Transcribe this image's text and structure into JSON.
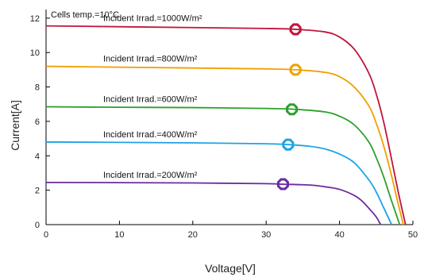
{
  "chart_data": {
    "type": "line",
    "annotation": "Cells temp.=10°C",
    "xlabel": "Voltage[V]",
    "ylabel": "Current[A]",
    "xlim": [
      0,
      50
    ],
    "ylim": [
      0,
      12.5
    ],
    "xticks": [
      0,
      10,
      20,
      30,
      40,
      50
    ],
    "yticks": [
      0,
      2,
      4,
      6,
      8,
      10,
      12
    ],
    "grid": false,
    "series": [
      {
        "name": "Incident Irrad.=1000W/m²",
        "color": "#c0143c",
        "x": [
          0,
          10,
          20,
          30,
          34,
          38,
          40,
          42,
          44,
          45,
          46,
          47,
          48,
          49
        ],
        "y": [
          11.55,
          11.5,
          11.45,
          11.4,
          11.35,
          11.2,
          10.9,
          10.2,
          8.8,
          7.6,
          6.0,
          4.0,
          1.9,
          0
        ],
        "mpp": [
          34,
          11.35
        ]
      },
      {
        "name": "Incident Irrad.=800W/m²",
        "color": "#f0a000",
        "x": [
          0,
          10,
          20,
          30,
          34,
          38,
          40,
          42,
          44,
          45,
          46,
          47,
          48,
          48.7
        ],
        "y": [
          9.2,
          9.15,
          9.1,
          9.05,
          9.0,
          8.85,
          8.6,
          8.0,
          6.9,
          5.9,
          4.6,
          3.0,
          1.2,
          0
        ],
        "mpp": [
          34,
          9.0
        ]
      },
      {
        "name": "Incident Irrad.=600W/m²",
        "color": "#2ca02c",
        "x": [
          0,
          10,
          20,
          30,
          34,
          38,
          40,
          42,
          44,
          45,
          46,
          47,
          48.2
        ],
        "y": [
          6.85,
          6.82,
          6.8,
          6.75,
          6.7,
          6.55,
          6.3,
          5.8,
          4.8,
          3.9,
          2.8,
          1.5,
          0
        ],
        "mpp": [
          33.5,
          6.7
        ]
      },
      {
        "name": "Incident Irrad.=400W/m²",
        "color": "#1ca3e6",
        "x": [
          0,
          10,
          20,
          30,
          33,
          36,
          38,
          40,
          42,
          44,
          45,
          46,
          47.1
        ],
        "y": [
          4.8,
          4.78,
          4.75,
          4.7,
          4.65,
          4.55,
          4.4,
          4.1,
          3.6,
          2.6,
          1.9,
          1.0,
          0
        ],
        "mpp": [
          33,
          4.65
        ]
      },
      {
        "name": "Incident Irrad.=200W/m²",
        "color": "#6a2c9e",
        "x": [
          0,
          10,
          20,
          30,
          32,
          36,
          38,
          40,
          42,
          43,
          44,
          45,
          45.6
        ],
        "y": [
          2.45,
          2.44,
          2.42,
          2.38,
          2.35,
          2.3,
          2.2,
          2.05,
          1.7,
          1.4,
          0.95,
          0.45,
          0
        ],
        "mpp": [
          32.3,
          2.35
        ]
      }
    ]
  }
}
